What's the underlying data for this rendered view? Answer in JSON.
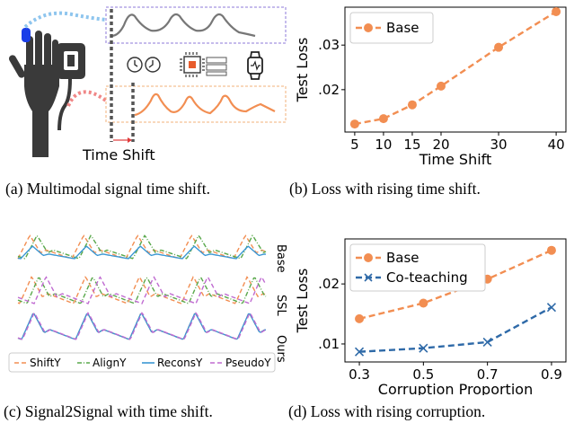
{
  "panel_a": {
    "caption": "(a) Multimodal signal time shift.",
    "time_shift_label": "Time Shift"
  },
  "panel_c": {
    "caption": "(c) Signal2Signal with time shift.",
    "row_labels": [
      "Base",
      "SSL",
      "Ours"
    ],
    "legend": [
      "ShiftY",
      "AlignY",
      "ReconsY",
      "PseudoY"
    ],
    "legend_colors": [
      "#f28e52",
      "#59a84b",
      "#3b97d3",
      "#c06bd1"
    ]
  },
  "chart_data": [
    {
      "type": "line",
      "xlabel": "Time Shift",
      "ylabel": "Test Loss",
      "x": [
        5,
        10,
        15,
        20,
        30,
        40
      ],
      "xticks": [
        "5",
        "10",
        "15",
        "20",
        "30",
        "40"
      ],
      "yticks": [
        ".02",
        ".03"
      ],
      "ytick_values": [
        0.02,
        0.03
      ],
      "ylim": [
        0.0105,
        0.0385
      ],
      "legend_position": "top-left",
      "series": [
        {
          "name": "Base",
          "values": [
            0.0123,
            0.0135,
            0.0166,
            0.0208,
            0.0295,
            0.0375
          ],
          "color": "#f28e52",
          "marker": "circle"
        }
      ],
      "caption": "(b) Loss with rising time shift."
    },
    {
      "type": "line",
      "xlabel": "Corruption Proportion",
      "ylabel": "Test Loss",
      "x": [
        0.3,
        0.5,
        0.7,
        0.9
      ],
      "xticks": [
        "0.3",
        "0.5",
        "0.7",
        "0.9"
      ],
      "yticks": [
        ".01",
        ".02"
      ],
      "ytick_values": [
        0.01,
        0.02
      ],
      "ylim": [
        0.007,
        0.0275
      ],
      "legend_position": "top-left",
      "series": [
        {
          "name": "Base",
          "values": [
            0.0142,
            0.0168,
            0.0208,
            0.0256
          ],
          "color": "#f28e52",
          "marker": "circle"
        },
        {
          "name": "Co-teaching",
          "values": [
            0.0087,
            0.0093,
            0.0103,
            0.0161
          ],
          "color": "#2f6aa8",
          "marker": "x"
        }
      ],
      "caption": "(d) Loss with rising corruption."
    }
  ]
}
